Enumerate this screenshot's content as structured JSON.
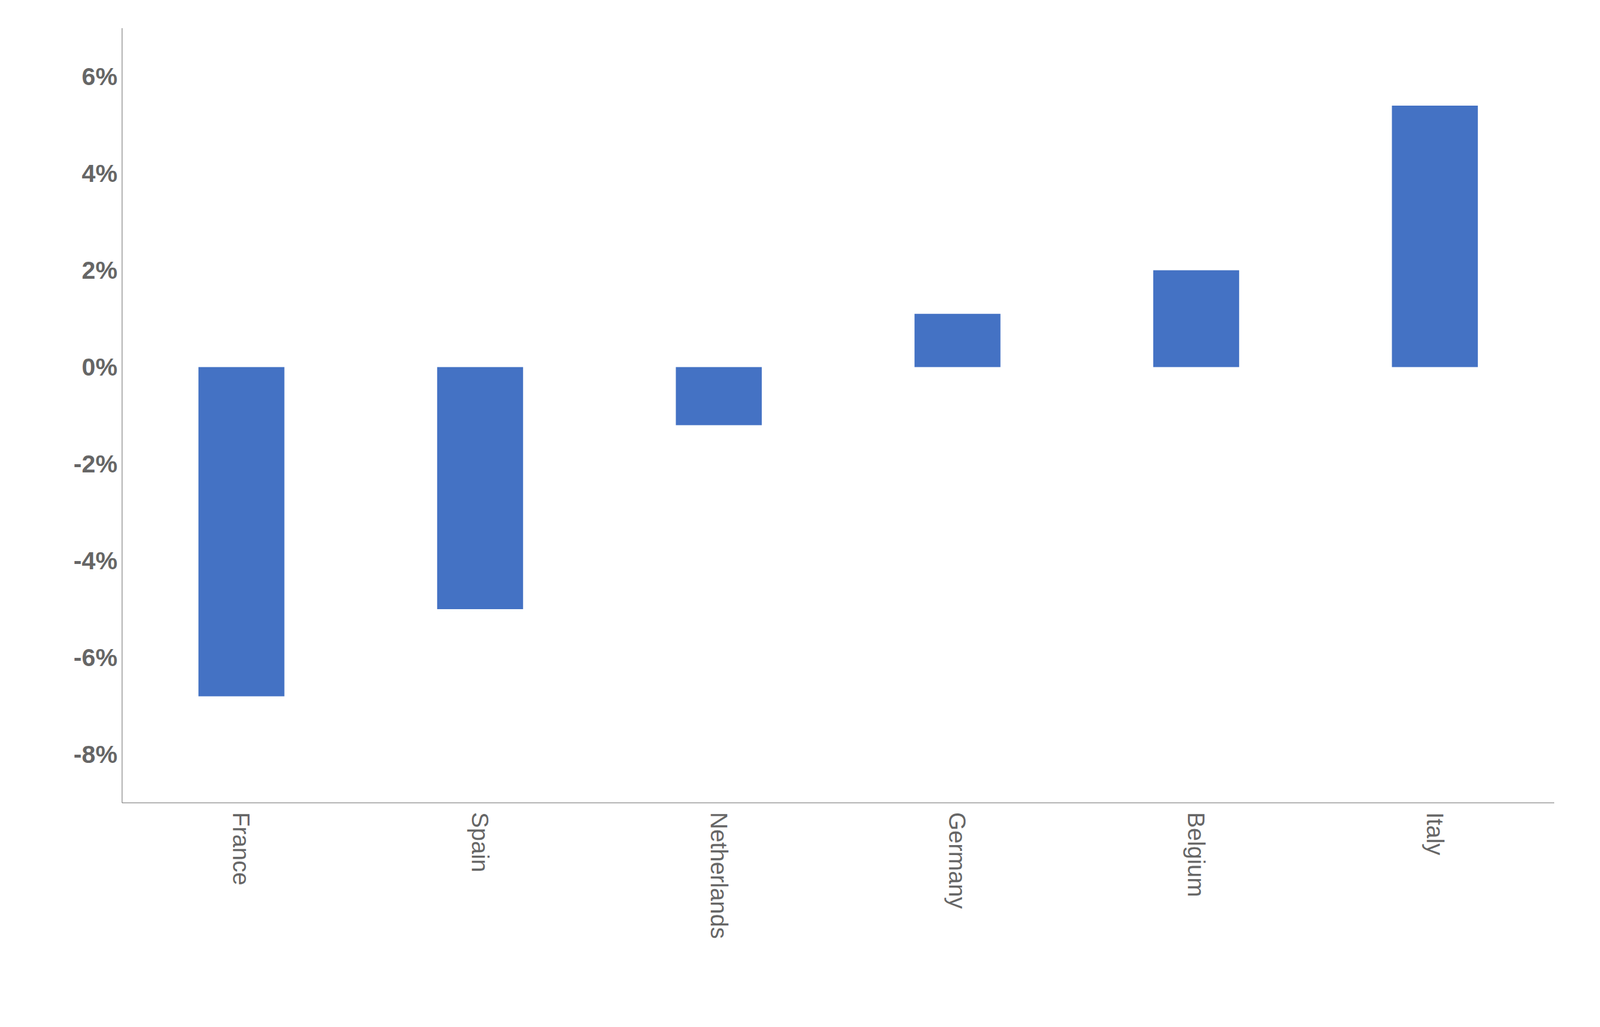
{
  "chart_data": {
    "type": "bar",
    "categories": [
      "France",
      "Spain",
      "Netherlands",
      "Germany",
      "Belgium",
      "Italy"
    ],
    "values": [
      -6.8,
      -5.0,
      -1.2,
      1.1,
      2.0,
      5.4
    ],
    "color": "#4472C4",
    "ylim": [
      -9,
      7
    ],
    "yticks": [
      {
        "value": -8,
        "label": "-8%"
      },
      {
        "value": -6,
        "label": "-6%"
      },
      {
        "value": -4,
        "label": "-4%"
      },
      {
        "value": -2,
        "label": "-2%"
      },
      {
        "value": 0,
        "label": "0%"
      },
      {
        "value": 2,
        "label": "2%"
      },
      {
        "value": 4,
        "label": "4%"
      },
      {
        "value": 6,
        "label": "6%"
      }
    ],
    "grid": false
  }
}
